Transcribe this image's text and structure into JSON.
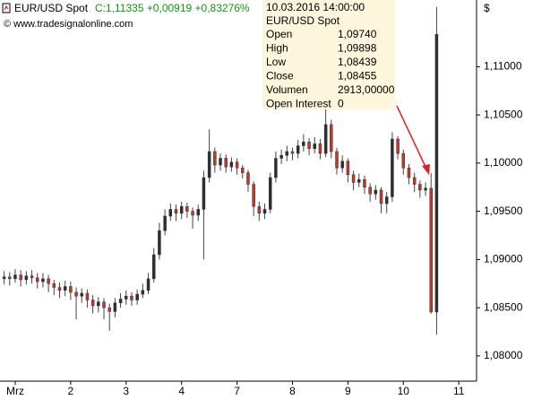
{
  "chart_data": {
    "type": "candlestick",
    "symbol": "EUR/USD Spot",
    "quote": "C:1,11335 +0,00919 +0,83276%",
    "source": "© www.tradesignalonline.com",
    "axis_unit": "$",
    "tooltip": {
      "date": "10.03.2016 14:00:00",
      "symbol": "EUR/USD Spot",
      "rows": [
        {
          "label": "Open",
          "value": "1,09740"
        },
        {
          "label": "High",
          "value": "1,09898"
        },
        {
          "label": "Low",
          "value": "1,08439"
        },
        {
          "label": "Close",
          "value": "1,08455"
        },
        {
          "label": "Volumen",
          "value": "2913,00000"
        },
        {
          "label": "Open Interest",
          "value": "0"
        }
      ]
    },
    "up_color": "#2e2e2e",
    "down_color": "#c0392b",
    "categories": [
      null,
      null,
      "Mrz",
      null,
      null,
      null,
      null,
      null,
      null,
      null,
      null,
      null,
      "2",
      null,
      null,
      null,
      null,
      null,
      null,
      null,
      null,
      null,
      "3",
      null,
      null,
      null,
      null,
      null,
      null,
      null,
      null,
      null,
      "4",
      null,
      null,
      null,
      null,
      null,
      null,
      null,
      null,
      null,
      "7",
      null,
      null,
      null,
      null,
      null,
      null,
      null,
      null,
      null,
      "8",
      null,
      null,
      null,
      null,
      null,
      null,
      null,
      null,
      null,
      "9",
      null,
      null,
      null,
      null,
      null,
      null,
      null,
      null,
      null,
      "10",
      null,
      null,
      null,
      null,
      null,
      null,
      null,
      null,
      null,
      "11",
      null
    ],
    "open": [
      1.088,
      1.0882,
      1.088,
      1.0884,
      1.0879,
      1.0883,
      1.0881,
      1.0877,
      1.088,
      1.0875,
      1.0871,
      1.0868,
      1.0872,
      1.0866,
      1.0862,
      1.0865,
      1.0858,
      1.0852,
      1.0856,
      1.085,
      1.0846,
      1.0855,
      1.0859,
      1.0862,
      1.0858,
      1.0864,
      1.0868,
      1.088,
      1.0905,
      1.093,
      1.0945,
      1.0952,
      1.0948,
      1.0955,
      1.095,
      1.0946,
      1.0952,
      1.0985,
      1.1012,
      1.0998,
      1.1005,
      1.0996,
      1.1001,
      1.0995,
      1.099,
      1.0978,
      1.0955,
      1.0948,
      1.0952,
      1.0985,
      1.1005,
      1.1008,
      1.1012,
      1.101,
      1.1018,
      1.1022,
      1.1015,
      1.102,
      1.101,
      1.104,
      1.1012,
      1.0995,
      1.1002,
      1.0988,
      1.098,
      1.0983,
      1.0975,
      1.0968,
      1.0972,
      1.0958,
      1.0965,
      1.1025,
      1.101,
      1.0995,
      1.0985,
      1.0978,
      1.0972,
      1.0974,
      1.08455,
      null,
      null,
      null,
      null,
      null
    ],
    "high": [
      1.0888,
      1.0887,
      1.089,
      1.0889,
      1.0888,
      1.0889,
      1.0886,
      1.0886,
      1.0884,
      1.0879,
      1.0876,
      1.0878,
      1.0877,
      1.0871,
      1.087,
      1.0869,
      1.0863,
      1.0861,
      1.086,
      1.0854,
      1.086,
      1.0865,
      1.0868,
      1.0866,
      1.0869,
      1.0875,
      1.0886,
      1.0912,
      1.0938,
      1.0952,
      1.0958,
      1.0957,
      1.096,
      1.0959,
      1.0954,
      1.0957,
      1.0992,
      1.1035,
      1.1016,
      1.101,
      1.1009,
      1.1006,
      1.1005,
      1.0998,
      1.0993,
      1.0981,
      1.096,
      1.0958,
      1.099,
      1.1012,
      1.1014,
      1.1018,
      1.1016,
      1.1024,
      1.103,
      1.1026,
      1.1027,
      1.1025,
      1.1068,
      1.1045,
      1.1016,
      1.1008,
      1.1005,
      1.0992,
      1.0989,
      1.0987,
      1.0979,
      1.0977,
      1.0975,
      1.097,
      1.1032,
      1.1028,
      1.1014,
      1.0999,
      1.099,
      1.0982,
      1.098,
      1.09898,
      1.1162,
      null,
      null,
      null,
      null,
      null
    ],
    "low": [
      1.0874,
      1.0873,
      1.0876,
      1.0872,
      1.0874,
      1.0875,
      1.087,
      1.0871,
      1.0866,
      1.0863,
      1.086,
      1.0862,
      1.0858,
      1.0838,
      1.0855,
      1.085,
      1.0844,
      1.0845,
      1.0838,
      1.0826,
      1.084,
      1.085,
      1.0853,
      1.0852,
      1.0853,
      1.086,
      1.0864,
      1.0876,
      1.09,
      1.0925,
      1.094,
      1.094,
      1.0942,
      1.0943,
      1.0932,
      1.094,
      1.09,
      1.098,
      1.099,
      1.0992,
      1.099,
      1.0991,
      1.0988,
      1.0984,
      1.097,
      1.0945,
      1.094,
      1.0942,
      1.0948,
      1.098,
      1.0999,
      1.1002,
      1.1003,
      1.1005,
      1.1012,
      1.1008,
      1.101,
      1.1004,
      1.1006,
      1.1005,
      1.0988,
      1.099,
      1.098,
      1.0972,
      1.0975,
      1.0968,
      1.096,
      1.0962,
      1.0948,
      1.0948,
      1.096,
      1.1004,
      1.0988,
      1.0978,
      1.097,
      1.0964,
      1.0966,
      1.08439,
      1.0822,
      null,
      null,
      null,
      null,
      null
    ],
    "close": [
      1.0882,
      1.088,
      1.0884,
      1.0879,
      1.0883,
      1.0881,
      1.0877,
      1.088,
      1.0875,
      1.0871,
      1.0868,
      1.0872,
      1.0866,
      1.0862,
      1.0865,
      1.0858,
      1.0852,
      1.0856,
      1.085,
      1.0846,
      1.0855,
      1.0859,
      1.0862,
      1.0858,
      1.0864,
      1.0868,
      1.088,
      1.0905,
      1.093,
      1.0945,
      1.0952,
      1.0948,
      1.0955,
      1.095,
      1.0946,
      1.0952,
      1.0985,
      1.1012,
      1.0998,
      1.1005,
      1.0996,
      1.1001,
      1.0995,
      1.099,
      1.0978,
      1.0955,
      1.0948,
      1.0952,
      1.0985,
      1.1005,
      1.1008,
      1.1012,
      1.101,
      1.1018,
      1.1022,
      1.1015,
      1.102,
      1.101,
      1.104,
      1.1012,
      1.0995,
      1.1002,
      1.0988,
      1.098,
      1.0983,
      1.0975,
      1.0968,
      1.0972,
      1.0958,
      1.0965,
      1.1025,
      1.101,
      1.0995,
      1.0985,
      1.0978,
      1.0972,
      1.0974,
      1.08455,
      1.11335,
      null,
      null,
      null,
      null,
      null
    ],
    "ylim": [
      1.07738,
      1.11692
    ],
    "yticks": [
      {
        "value": 1.08,
        "label": "1,08000"
      },
      {
        "value": 1.085,
        "label": "1,08500"
      },
      {
        "value": 1.09,
        "label": "1,09000"
      },
      {
        "value": 1.095,
        "label": "1,09500"
      },
      {
        "value": 1.1,
        "label": "1,10000"
      },
      {
        "value": 1.105,
        "label": "1,10500"
      },
      {
        "value": 1.11,
        "label": "1,11000"
      }
    ],
    "grid": false
  }
}
